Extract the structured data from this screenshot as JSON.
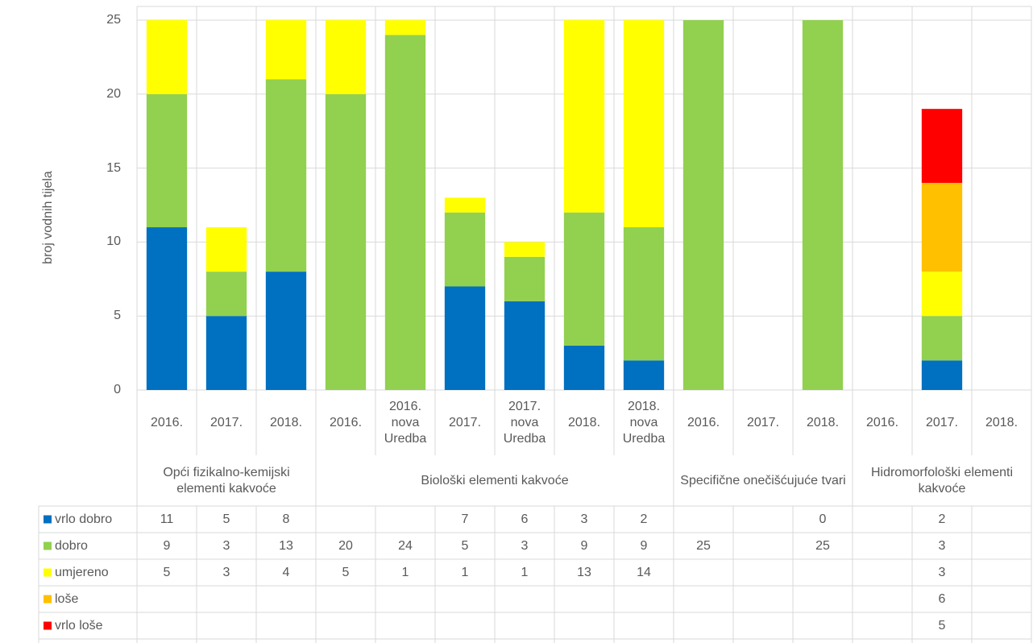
{
  "chart_data": {
    "type": "stacked_bar",
    "y_label": "broj vodnih tijela",
    "groups": [
      {
        "name": "Opći fizikalno-kemijski elementi kakvoće",
        "categories": [
          "2016.",
          "2017.",
          "2018."
        ]
      },
      {
        "name": "Biološki elementi kakvoće",
        "categories": [
          "2016.",
          "2016. nova Uredba",
          "2017.",
          "2017. nova Uredba",
          "2018.",
          "2018. nova Uredba"
        ]
      },
      {
        "name": "Specifične onečišćujuće tvari",
        "categories": [
          "2016.",
          "2017.",
          "2018."
        ]
      },
      {
        "name": "Hidromorfološki elementi kakvoće",
        "categories": [
          "2016.",
          "2017.",
          "2018."
        ]
      }
    ],
    "series": [
      {
        "name": "vrlo dobro",
        "color": "#0070c0",
        "values": [
          11,
          5,
          8,
          null,
          null,
          7,
          6,
          3,
          2,
          null,
          null,
          0,
          null,
          2,
          null
        ]
      },
      {
        "name": "dobro",
        "color": "#92d050",
        "values": [
          9,
          3,
          13,
          20,
          24,
          5,
          3,
          9,
          9,
          25,
          null,
          25,
          null,
          3,
          null
        ]
      },
      {
        "name": "umjereno",
        "color": "#ffff00",
        "values": [
          5,
          3,
          4,
          5,
          1,
          1,
          1,
          13,
          14,
          null,
          null,
          null,
          null,
          3,
          null
        ]
      },
      {
        "name": "loše",
        "color": "#ffc000",
        "values": [
          null,
          null,
          null,
          null,
          null,
          null,
          null,
          null,
          null,
          null,
          null,
          null,
          null,
          6,
          null
        ]
      },
      {
        "name": "vrlo loše",
        "color": "#ff0000",
        "values": [
          null,
          null,
          null,
          null,
          null,
          null,
          null,
          null,
          null,
          null,
          null,
          null,
          null,
          5,
          null
        ]
      }
    ],
    "ylim": [
      0,
      25
    ],
    "yticks": [
      0,
      5,
      10,
      15,
      20,
      25
    ],
    "grid": true
  }
}
